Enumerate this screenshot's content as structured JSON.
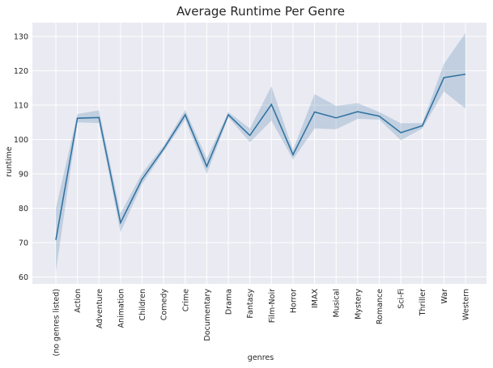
{
  "chart_data": {
    "type": "line",
    "title": "Average Runtime Per Genre",
    "xlabel": "genres",
    "ylabel": "runtime",
    "categories": [
      "(no genres listed)",
      "Action",
      "Adventure",
      "Animation",
      "Children",
      "Comedy",
      "Crime",
      "Documentary",
      "Drama",
      "Fantasy",
      "Film-Noir",
      "Horror",
      "IMAX",
      "Musical",
      "Mystery",
      "Romance",
      "Sci-Fi",
      "Thriller",
      "War",
      "Western"
    ],
    "series": [
      {
        "values": [
          70.8,
          106.2,
          106.4,
          75.8,
          88.5,
          97.3,
          107.2,
          92.2,
          107.2,
          101.2,
          110.2,
          95.6,
          108.0,
          106.3,
          108.1,
          106.8,
          102.0,
          104.0,
          118.0,
          119.0
        ],
        "ci_lower": [
          61.5,
          105.0,
          104.8,
          73.0,
          87.0,
          96.5,
          105.8,
          90.0,
          106.5,
          99.2,
          105.5,
          94.2,
          103.2,
          103.0,
          106.0,
          105.8,
          99.8,
          103.2,
          114.0,
          109.0
        ],
        "ci_upper": [
          80.0,
          107.4,
          108.5,
          78.5,
          90.2,
          98.2,
          108.6,
          94.5,
          108.0,
          103.2,
          115.5,
          97.0,
          113.2,
          109.8,
          110.6,
          108.0,
          104.7,
          104.8,
          122.0,
          131.0
        ]
      }
    ],
    "yticks": [
      60,
      70,
      80,
      90,
      100,
      110,
      120,
      130
    ],
    "ylim": [
      58,
      134
    ],
    "grid": true,
    "line_color": "#3274a1",
    "band_color": "#3274a1",
    "background_color": "#eaeaf2"
  }
}
